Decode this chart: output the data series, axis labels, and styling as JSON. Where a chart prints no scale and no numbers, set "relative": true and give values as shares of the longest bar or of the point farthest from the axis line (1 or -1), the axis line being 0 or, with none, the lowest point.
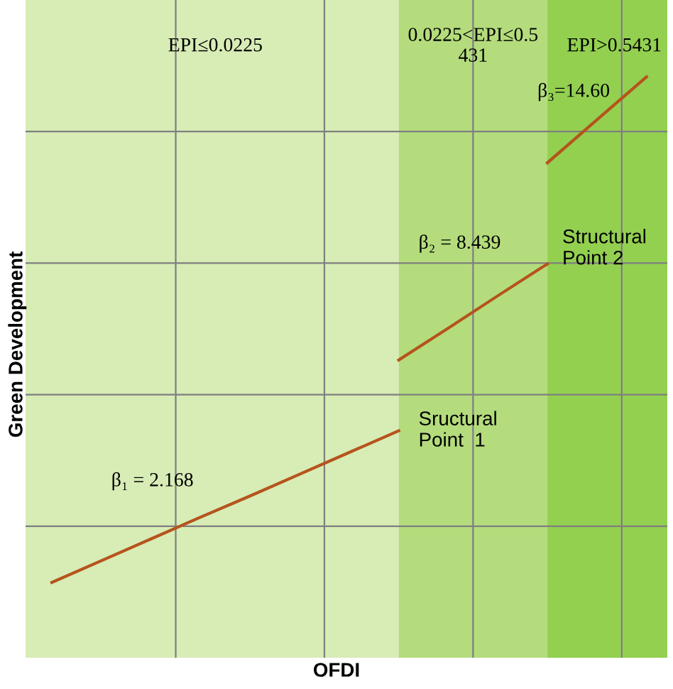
{
  "chart_data": {
    "type": "line",
    "relative": true,
    "xlabel": "OFDI",
    "ylabel": "Green Development",
    "categories": [
      null,
      null,
      null,
      null,
      null,
      null,
      null,
      null,
      null,
      null,
      null,
      null,
      null
    ],
    "series": [
      {
        "color": "#b5541c",
        "values": [
          0,
          0.043,
          0.086,
          0.129,
          0.171,
          0.214,
          0.257,
          0.3,
          null,
          null,
          null,
          null,
          null
        ]
      },
      {
        "color": "#b5541c",
        "values": [
          null,
          null,
          null,
          null,
          null,
          null,
          null,
          0.44,
          0.503,
          0.567,
          0.63,
          null,
          null
        ]
      },
      {
        "color": "#b5541c",
        "values": [
          null,
          null,
          null,
          null,
          null,
          null,
          null,
          null,
          null,
          null,
          0.83,
          0.915,
          1
        ]
      }
    ],
    "grid": true,
    "legend": false,
    "marker": "none",
    "line_style": "solid",
    "annotations": [
      "EPI≤0.0225",
      "0.0225<EPI≤0.5\n431",
      "EPI>0.5431",
      "β₁ = 2.168",
      "β₂ = 8.439",
      "β₃=14.60",
      "Sructural\nPoint  1",
      "Structural\nPoint 2"
    ]
  }
}
